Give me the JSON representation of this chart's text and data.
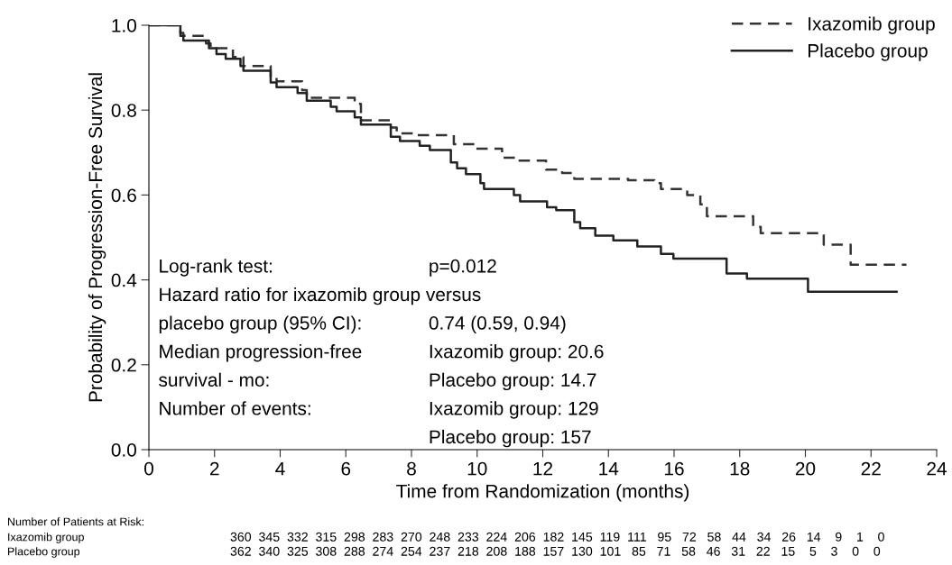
{
  "chart_data": {
    "type": "step",
    "xlabel": "Time from Randomization (months)",
    "ylabel": "Probability of Progression-Free Survival",
    "xlim": [
      0,
      24
    ],
    "xticks": [
      0,
      2,
      4,
      6,
      8,
      10,
      12,
      14,
      16,
      18,
      20,
      22,
      24
    ],
    "ylim": [
      0,
      1.0
    ],
    "yticks": [
      {
        "value": 0,
        "label": "0.0"
      },
      0.2,
      0.4,
      0.6,
      0.8,
      {
        "value": 1,
        "label": "1.0"
      }
    ],
    "legend": "top right",
    "grid": false,
    "series": [
      {
        "name": "Ixazomib group",
        "color": "#333333",
        "line_style": "dashed",
        "x": [
          0,
          0.96,
          1.05,
          1.74,
          1.88,
          2.56,
          2.88,
          3.71,
          3.89,
          4.67,
          4.81,
          6.27,
          6.46,
          7.37,
          7.55,
          8.19,
          9.29,
          9.94,
          10.76,
          11.22,
          12.1,
          12.59,
          12.96,
          14.6,
          15.4,
          15.6,
          16.4,
          16.8,
          17.0,
          18.41,
          18.64,
          20.56,
          21.38,
          23.08
        ],
        "values": [
          1.0,
          0.982,
          0.975,
          0.957,
          0.946,
          0.925,
          0.904,
          0.879,
          0.868,
          0.847,
          0.829,
          0.815,
          0.776,
          0.759,
          0.745,
          0.741,
          0.72,
          0.709,
          0.688,
          0.681,
          0.66,
          0.652,
          0.638,
          0.635,
          0.628,
          0.614,
          0.6,
          0.578,
          0.55,
          0.525,
          0.51,
          0.483,
          0.436,
          0.436
        ]
      },
      {
        "name": "Placebo group",
        "color": "#222222",
        "line_style": "solid",
        "x": [
          0,
          0.96,
          1.05,
          1.83,
          2.06,
          2.34,
          2.79,
          2.88,
          3.71,
          3.89,
          4.53,
          4.81,
          5.54,
          5.72,
          6.27,
          6.46,
          7.37,
          7.65,
          8.25,
          8.56,
          9.2,
          9.39,
          9.66,
          10.1,
          10.21,
          11.12,
          11.31,
          12.13,
          12.41,
          12.96,
          13.14,
          13.6,
          14.15,
          14.88,
          15.6,
          15.98,
          17.6,
          18.22,
          20.08,
          22.78
        ],
        "values": [
          1.0,
          0.975,
          0.964,
          0.946,
          0.932,
          0.921,
          0.904,
          0.893,
          0.865,
          0.854,
          0.84,
          0.822,
          0.808,
          0.797,
          0.783,
          0.766,
          0.737,
          0.727,
          0.716,
          0.706,
          0.677,
          0.663,
          0.649,
          0.628,
          0.614,
          0.6,
          0.585,
          0.571,
          0.564,
          0.536,
          0.522,
          0.504,
          0.493,
          0.479,
          0.461,
          0.45,
          0.415,
          0.403,
          0.372,
          0.372
        ]
      }
    ],
    "annotations": [
      "Log-rank test:",
      "Hazard ratio for ixazomib group versus",
      "placebo group (95% CI):",
      "Median progression-free",
      "survival - mo:",
      "Number of events:",
      "p=0.012",
      "0.74 (0.59, 0.94)",
      "Ixazomib group: 20.6",
      "Placebo group: 14.7",
      "Ixazomib group: 129",
      "Placebo group: 157",
      "Number of Patients at Risk:",
      "Ixazomib group",
      "360  345  332  315  298  283  270  248  233  224  206  182  145  119  111   95   72   58   44   34   26   14    9    1    0",
      "Placebo group",
      "362  340  325  308  288  274  254  237  218  208  188  157  130  101   85   71   58   46   31   22   15    5    3    0    0"
    ]
  }
}
